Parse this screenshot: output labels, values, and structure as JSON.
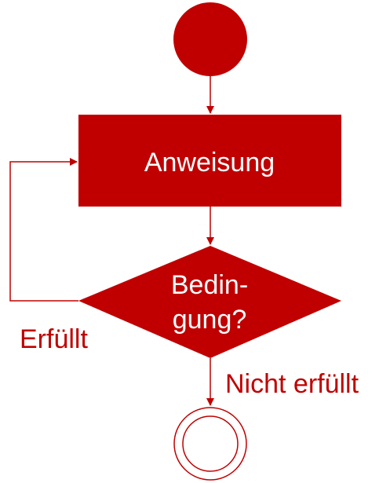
{
  "colors": {
    "primary": "#c00000",
    "text_on_primary": "#ffffff",
    "background": "#ffffff"
  },
  "nodes": {
    "start": {
      "shape": "filled-circle"
    },
    "action": {
      "label": "Anweisung"
    },
    "decision": {
      "label_line1": "Bedin-",
      "label_line2": "gung?"
    },
    "end": {
      "shape": "double-circle"
    }
  },
  "edges": {
    "loop": {
      "label": "Erfüllt"
    },
    "exit": {
      "label": "Nicht erfüllt"
    }
  }
}
